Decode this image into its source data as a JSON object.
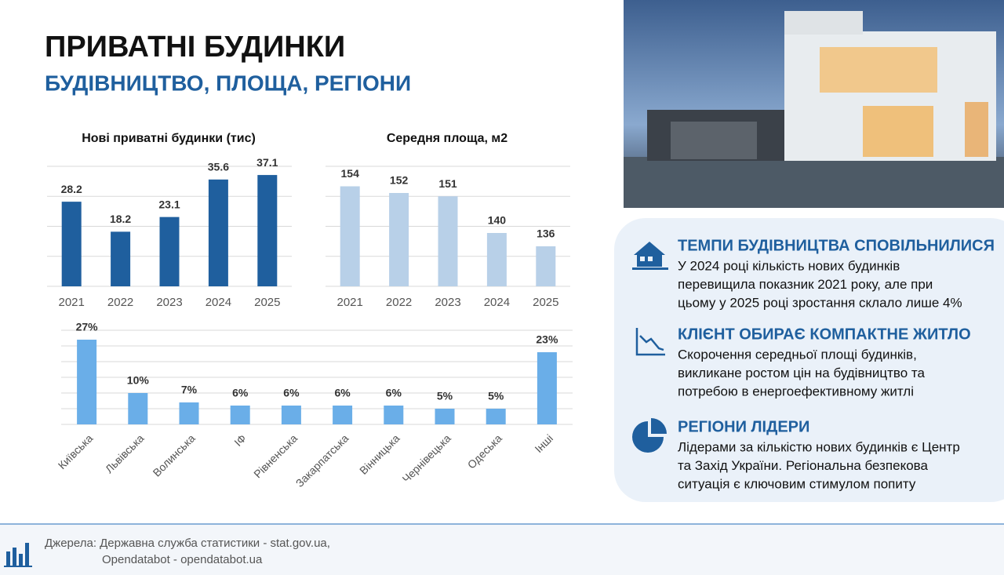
{
  "header": {
    "title": "ПРИВАТНІ БУДИНКИ",
    "subtitle": "БУДІВНИЦТВО, ПЛОЩА, РЕГІОНИ"
  },
  "chart_data": [
    {
      "type": "bar",
      "title": "Нові приватні будинки (тис)",
      "categories": [
        "2021",
        "2022",
        "2023",
        "2024",
        "2025"
      ],
      "values": [
        28.2,
        18.2,
        23.1,
        35.6,
        37.1
      ],
      "color": "#1f5f9e",
      "ylim": [
        0,
        40
      ],
      "yticks": [
        0,
        10,
        20,
        30,
        40
      ],
      "grid": true
    },
    {
      "type": "bar",
      "title": "Середня площа, м2",
      "categories": [
        "2021",
        "2022",
        "2023",
        "2024",
        "2025"
      ],
      "values": [
        154,
        152,
        151,
        140,
        136
      ],
      "color": "#b8d0e8",
      "ylim": [
        124,
        160
      ],
      "yticks": [
        124,
        133,
        142,
        151,
        160
      ],
      "grid": true
    },
    {
      "type": "bar",
      "categories": [
        "Київська",
        "Львівська",
        "Волинська",
        "ІФ",
        "Рівненська",
        "Закарпатська",
        "Вінницька",
        "Чернівецька",
        "Одеська",
        "Інші"
      ],
      "values": [
        27,
        10,
        7,
        6,
        6,
        6,
        6,
        5,
        5,
        23
      ],
      "value_labels": [
        "27%",
        "10%",
        "7%",
        "6%",
        "6%",
        "6%",
        "6%",
        "5%",
        "5%",
        "23%"
      ],
      "color": "#6aaee8",
      "ylim": [
        0,
        30
      ],
      "yticks": [
        0,
        5,
        10,
        15,
        20,
        25,
        30
      ],
      "grid": true
    }
  ],
  "panel": {
    "items": [
      {
        "title": "ТЕМПИ БУДІВНИЦТВА СПОВІЛЬНИЛИСЯ",
        "lines": [
          "У 2024 році кількість нових будинків",
          "перевищила показник 2021 року, але при",
          "цьому у 2025 році зростання склало лише 4%"
        ]
      },
      {
        "title": "КЛІЄНТ ОБИРАЄ КОМПАКТНЕ ЖИТЛО",
        "lines": [
          "Скорочення середньої площі будинків,",
          "викликане ростом цін на будівництво та",
          "потребою в енергоефективному житлі"
        ]
      },
      {
        "title": "РЕГІОНИ ЛІДЕРИ",
        "lines": [
          "Лідерами за кількістю нових будинків є Центр",
          "та Захід України. Регіональна безпекова",
          "ситуація є ключовим стимулом попиту"
        ]
      }
    ]
  },
  "footer": {
    "lines": [
      "Джерела: Державна служба статистики - stat.gov.ua,",
      "Opendatabot - opendatabot.ua"
    ]
  }
}
